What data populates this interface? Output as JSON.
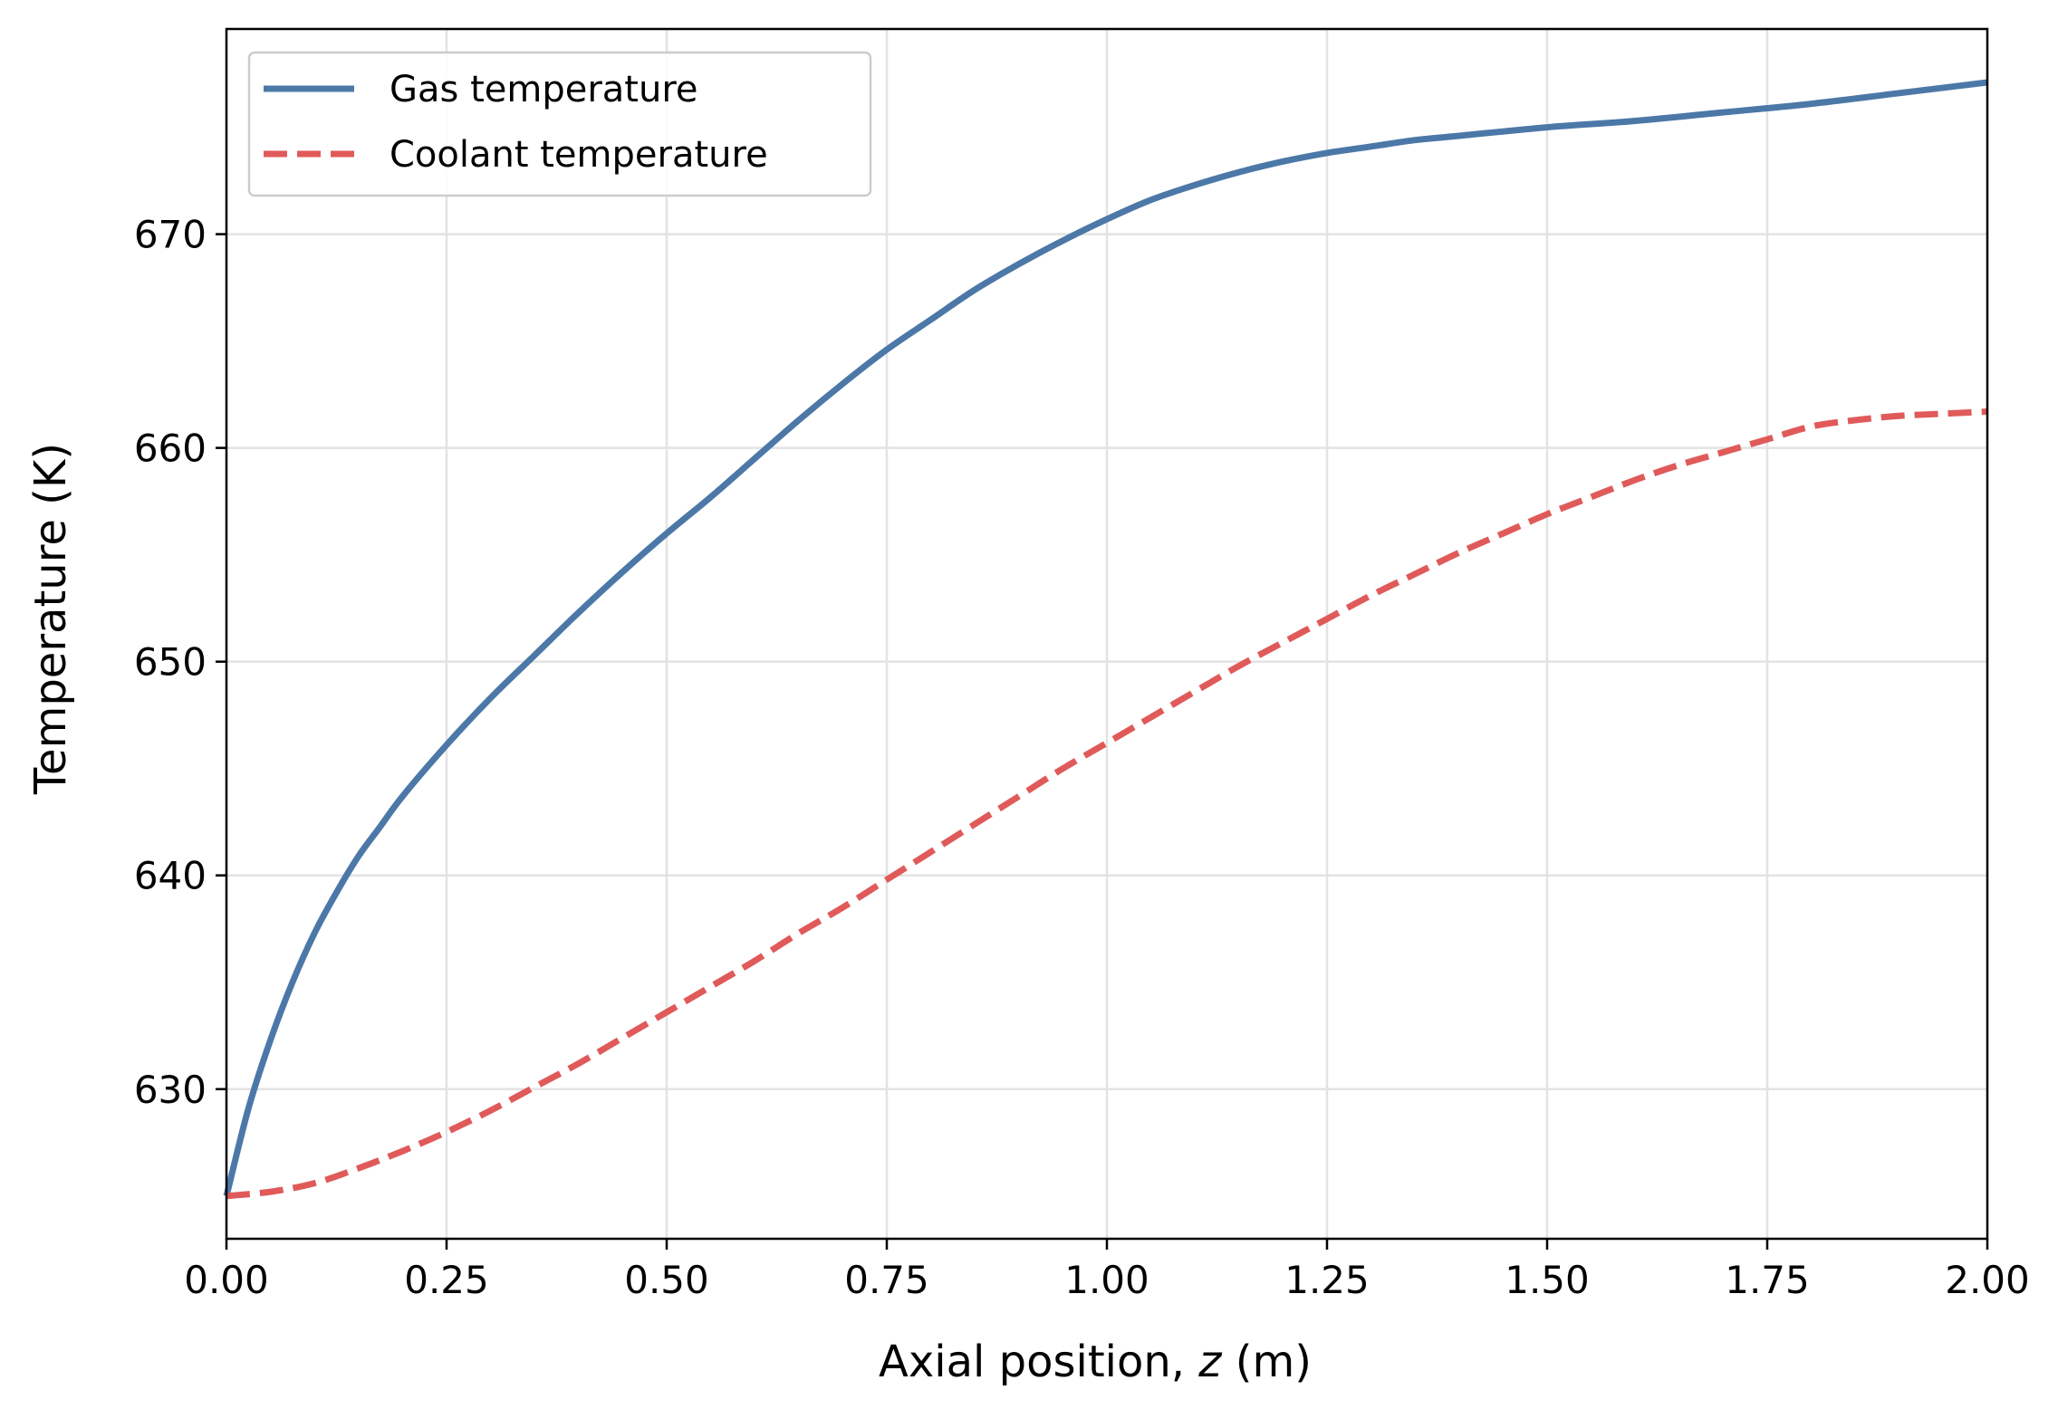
{
  "chart_data": {
    "type": "line",
    "xlabel_prefix": "Axial position, ",
    "xlabel_var": "z",
    "xlabel_suffix": " (m)",
    "ylabel": "Temperature (K)",
    "xlim": [
      0.0,
      2.0
    ],
    "ylim": [
      623.0,
      679.6
    ],
    "xticks": [
      "0.00",
      "0.25",
      "0.50",
      "0.75",
      "1.00",
      "1.25",
      "1.50",
      "1.75",
      "2.00"
    ],
    "yticks": [
      "630",
      "640",
      "650",
      "660",
      "670"
    ],
    "grid": true,
    "legend_position": "top-left",
    "series": [
      {
        "name": "Gas temperature",
        "color": "#4c78a8",
        "style": "solid",
        "x": [
          0.0,
          0.025,
          0.05,
          0.075,
          0.1,
          0.125,
          0.15,
          0.175,
          0.2,
          0.25,
          0.3,
          0.35,
          0.4,
          0.45,
          0.5,
          0.55,
          0.6,
          0.65,
          0.7,
          0.75,
          0.8,
          0.85,
          0.9,
          0.95,
          1.0,
          1.05,
          1.1,
          1.15,
          1.2,
          1.25,
          1.3,
          1.35,
          1.4,
          1.5,
          1.6,
          1.7,
          1.8,
          1.9,
          2.0
        ],
        "values": [
          625.0,
          629.1,
          632.3,
          635.0,
          637.3,
          639.2,
          640.9,
          642.3,
          643.7,
          646.1,
          648.3,
          650.3,
          652.3,
          654.2,
          656.0,
          657.7,
          659.5,
          661.3,
          663.0,
          664.6,
          666.0,
          667.4,
          668.6,
          669.7,
          670.7,
          671.6,
          672.3,
          672.9,
          673.4,
          673.8,
          674.1,
          674.4,
          674.6,
          675.0,
          675.3,
          675.7,
          676.1,
          676.6,
          677.1
        ]
      },
      {
        "name": "Coolant temperature",
        "color": "#e05a5a",
        "style": "dashed",
        "x": [
          0.0,
          0.05,
          0.1,
          0.15,
          0.2,
          0.25,
          0.3,
          0.35,
          0.4,
          0.45,
          0.5,
          0.55,
          0.6,
          0.65,
          0.7,
          0.75,
          0.8,
          0.85,
          0.9,
          0.95,
          1.0,
          1.05,
          1.1,
          1.15,
          1.2,
          1.25,
          1.3,
          1.35,
          1.4,
          1.45,
          1.5,
          1.55,
          1.6,
          1.65,
          1.7,
          1.75,
          1.8,
          1.85,
          1.9,
          1.95,
          2.0
        ],
        "values": [
          625.0,
          625.2,
          625.6,
          626.3,
          627.1,
          628.0,
          629.0,
          630.1,
          631.2,
          632.4,
          633.6,
          634.8,
          636.0,
          637.3,
          638.5,
          639.8,
          641.1,
          642.4,
          643.7,
          645.0,
          646.2,
          647.4,
          648.6,
          649.8,
          650.9,
          652.0,
          653.1,
          654.1,
          655.1,
          656.0,
          656.9,
          657.7,
          658.5,
          659.2,
          659.8,
          660.4,
          661.0,
          661.3,
          661.5,
          661.6,
          661.7
        ]
      }
    ]
  }
}
